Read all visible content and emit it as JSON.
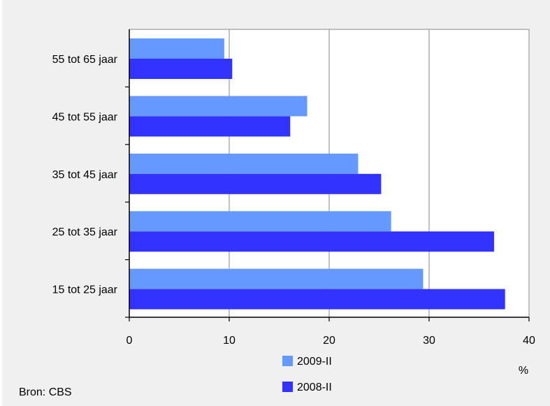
{
  "chart_data": {
    "type": "bar",
    "orientation": "horizontal",
    "categories": [
      "55 tot 65 jaar",
      "45 tot 55 jaar",
      "35 tot 45 jaar",
      "25 tot 35 jaar",
      "15 tot 25 jaar"
    ],
    "series": [
      {
        "name": "2009-II",
        "color": "#6699ff",
        "values": [
          9.5,
          17.8,
          22.9,
          26.2,
          29.4
        ]
      },
      {
        "name": "2008-II",
        "color": "#3333ff",
        "values": [
          10.3,
          16.1,
          25.2,
          36.5,
          37.6
        ]
      }
    ],
    "xlim": [
      0,
      40
    ],
    "xticks": [
      "0",
      "10",
      "20",
      "30",
      "40"
    ],
    "xlabel": "%",
    "grid": "vertical",
    "legend_position": "bottom",
    "source": "Bron: CBS"
  }
}
